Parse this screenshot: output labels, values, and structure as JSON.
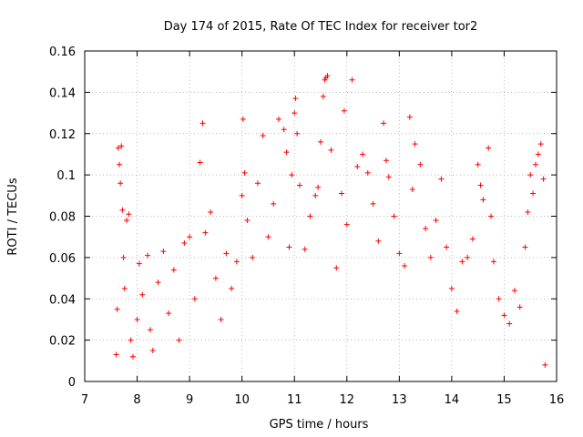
{
  "chart_data": {
    "type": "scatter",
    "title": "Day 174 of 2015, Rate Of TEC Index for receiver tor2",
    "xlabel": "GPS time / hours",
    "ylabel": "ROTI / TECUs",
    "xlim": [
      7,
      16
    ],
    "ylim": [
      0,
      0.16
    ],
    "x_ticks": [
      7,
      8,
      9,
      10,
      11,
      12,
      13,
      14,
      15,
      16
    ],
    "x_tick_labels": [
      "7",
      "8",
      "9",
      "10",
      "11",
      "12",
      "13",
      "14",
      "15",
      "16"
    ],
    "y_ticks": [
      0,
      0.02,
      0.04,
      0.06,
      0.08,
      0.1,
      0.12,
      0.14,
      0.16
    ],
    "y_tick_labels": [
      "0",
      "0.02",
      "0.04",
      "0.06",
      "0.08",
      "0.1",
      "0.12",
      "0.14",
      "0.16"
    ],
    "grid": true,
    "marker": "+",
    "colors": {
      "series": "#ff0000",
      "grid": "#a0a0a0",
      "axis": "#000000"
    },
    "series": [
      {
        "values": [
          [
            7.6,
            0.013
          ],
          [
            7.62,
            0.035
          ],
          [
            7.64,
            0.113
          ],
          [
            7.66,
            0.105
          ],
          [
            7.68,
            0.096
          ],
          [
            7.7,
            0.114
          ],
          [
            7.72,
            0.083
          ],
          [
            7.74,
            0.06
          ],
          [
            7.76,
            0.045
          ],
          [
            7.8,
            0.078
          ],
          [
            7.84,
            0.081
          ],
          [
            7.88,
            0.02
          ],
          [
            7.92,
            0.012
          ],
          [
            8.0,
            0.03
          ],
          [
            8.04,
            0.057
          ],
          [
            8.1,
            0.042
          ],
          [
            8.2,
            0.061
          ],
          [
            8.25,
            0.025
          ],
          [
            8.3,
            0.015
          ],
          [
            8.4,
            0.048
          ],
          [
            8.5,
            0.063
          ],
          [
            8.6,
            0.033
          ],
          [
            8.7,
            0.054
          ],
          [
            8.8,
            0.02
          ],
          [
            8.9,
            0.067
          ],
          [
            9.0,
            0.07
          ],
          [
            9.1,
            0.04
          ],
          [
            9.2,
            0.106
          ],
          [
            9.25,
            0.125
          ],
          [
            9.3,
            0.072
          ],
          [
            9.4,
            0.082
          ],
          [
            9.5,
            0.05
          ],
          [
            9.6,
            0.03
          ],
          [
            9.7,
            0.062
          ],
          [
            9.8,
            0.045
          ],
          [
            9.9,
            0.058
          ],
          [
            10.0,
            0.09
          ],
          [
            10.02,
            0.127
          ],
          [
            10.05,
            0.101
          ],
          [
            10.1,
            0.078
          ],
          [
            10.2,
            0.06
          ],
          [
            10.3,
            0.096
          ],
          [
            10.4,
            0.119
          ],
          [
            10.5,
            0.07
          ],
          [
            10.6,
            0.086
          ],
          [
            10.7,
            0.127
          ],
          [
            10.8,
            0.122
          ],
          [
            10.85,
            0.111
          ],
          [
            10.9,
            0.065
          ],
          [
            10.95,
            0.1
          ],
          [
            11.0,
            0.13
          ],
          [
            11.02,
            0.137
          ],
          [
            11.05,
            0.12
          ],
          [
            11.1,
            0.095
          ],
          [
            11.2,
            0.064
          ],
          [
            11.3,
            0.08
          ],
          [
            11.4,
            0.09
          ],
          [
            11.45,
            0.094
          ],
          [
            11.5,
            0.116
          ],
          [
            11.55,
            0.138
          ],
          [
            11.58,
            0.146
          ],
          [
            11.6,
            0.147
          ],
          [
            11.63,
            0.148
          ],
          [
            11.7,
            0.112
          ],
          [
            11.8,
            0.055
          ],
          [
            11.9,
            0.091
          ],
          [
            11.95,
            0.131
          ],
          [
            12.0,
            0.076
          ],
          [
            12.1,
            0.146
          ],
          [
            12.2,
            0.104
          ],
          [
            12.3,
            0.11
          ],
          [
            12.4,
            0.101
          ],
          [
            12.5,
            0.086
          ],
          [
            12.6,
            0.068
          ],
          [
            12.7,
            0.125
          ],
          [
            12.75,
            0.107
          ],
          [
            12.8,
            0.099
          ],
          [
            12.9,
            0.08
          ],
          [
            13.0,
            0.062
          ],
          [
            13.1,
            0.056
          ],
          [
            13.2,
            0.128
          ],
          [
            13.25,
            0.093
          ],
          [
            13.3,
            0.115
          ],
          [
            13.4,
            0.105
          ],
          [
            13.5,
            0.074
          ],
          [
            13.6,
            0.06
          ],
          [
            13.7,
            0.078
          ],
          [
            13.8,
            0.098
          ],
          [
            13.9,
            0.065
          ],
          [
            14.0,
            0.045
          ],
          [
            14.1,
            0.034
          ],
          [
            14.2,
            0.058
          ],
          [
            14.3,
            0.06
          ],
          [
            14.4,
            0.069
          ],
          [
            14.5,
            0.105
          ],
          [
            14.55,
            0.095
          ],
          [
            14.6,
            0.088
          ],
          [
            14.7,
            0.113
          ],
          [
            14.75,
            0.08
          ],
          [
            14.8,
            0.058
          ],
          [
            14.9,
            0.04
          ],
          [
            15.0,
            0.032
          ],
          [
            15.1,
            0.028
          ],
          [
            15.2,
            0.044
          ],
          [
            15.3,
            0.036
          ],
          [
            15.4,
            0.065
          ],
          [
            15.45,
            0.082
          ],
          [
            15.5,
            0.1
          ],
          [
            15.55,
            0.091
          ],
          [
            15.6,
            0.105
          ],
          [
            15.65,
            0.11
          ],
          [
            15.7,
            0.115
          ],
          [
            15.75,
            0.098
          ],
          [
            15.78,
            0.008
          ]
        ]
      }
    ]
  }
}
